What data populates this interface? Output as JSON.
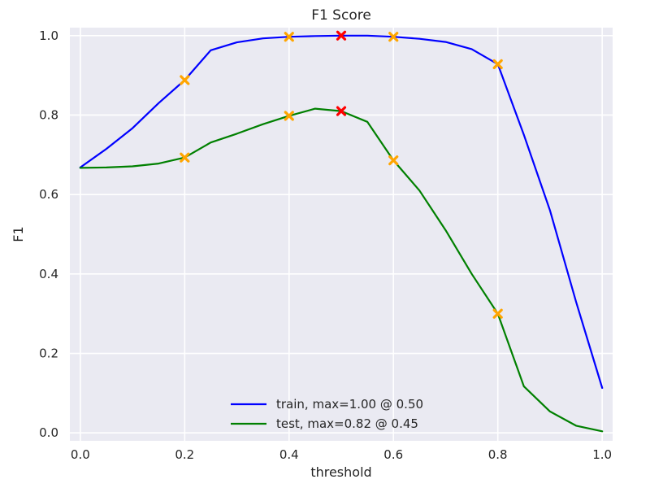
{
  "chart_data": {
    "type": "line",
    "title": "F1 Score",
    "xlabel": "threshold",
    "ylabel": "F1",
    "xlim": [
      -0.02,
      1.02
    ],
    "ylim": [
      -0.02,
      1.02
    ],
    "grid": true,
    "legend_position": "lower-center",
    "x_ticks": [
      "0.0",
      "0.2",
      "0.4",
      "0.6",
      "0.8",
      "1.0"
    ],
    "y_ticks": [
      "0.0",
      "0.2",
      "0.4",
      "0.6",
      "0.8",
      "1.0"
    ],
    "x": [
      0.0,
      0.05,
      0.1,
      0.15,
      0.2,
      0.25,
      0.3,
      0.35,
      0.4,
      0.45,
      0.5,
      0.55,
      0.6,
      0.65,
      0.7,
      0.75,
      0.8,
      0.85,
      0.9,
      0.95,
      1.0
    ],
    "series": [
      {
        "name": "train, max=1.00 @ 0.50",
        "color": "#0000ff",
        "values": [
          0.668,
          0.715,
          0.767,
          0.83,
          0.888,
          0.963,
          0.983,
          0.993,
          0.997,
          0.999,
          1.0,
          1.0,
          0.997,
          0.992,
          0.984,
          0.966,
          0.928,
          0.75,
          0.56,
          0.33,
          0.113
        ]
      },
      {
        "name": "test, max=0.82 @ 0.45",
        "color": "#008000",
        "values": [
          0.667,
          0.668,
          0.671,
          0.678,
          0.693,
          0.731,
          0.753,
          0.777,
          0.798,
          0.816,
          0.81,
          0.783,
          0.686,
          0.61,
          0.51,
          0.4,
          0.3,
          0.117,
          0.054,
          0.018,
          0.004
        ]
      }
    ],
    "markers": [
      {
        "series": 0,
        "x": 0.2,
        "y": 0.888,
        "color": "#ffa500"
      },
      {
        "series": 0,
        "x": 0.4,
        "y": 0.997,
        "color": "#ffa500"
      },
      {
        "series": 0,
        "x": 0.5,
        "y": 1.0,
        "color": "#ff0000"
      },
      {
        "series": 0,
        "x": 0.6,
        "y": 0.997,
        "color": "#ffa500"
      },
      {
        "series": 0,
        "x": 0.8,
        "y": 0.928,
        "color": "#ffa500"
      },
      {
        "series": 1,
        "x": 0.2,
        "y": 0.693,
        "color": "#ffa500"
      },
      {
        "series": 1,
        "x": 0.4,
        "y": 0.798,
        "color": "#ffa500"
      },
      {
        "series": 1,
        "x": 0.5,
        "y": 0.81,
        "color": "#ff0000"
      },
      {
        "series": 1,
        "x": 0.6,
        "y": 0.686,
        "color": "#ffa500"
      },
      {
        "series": 1,
        "x": 0.8,
        "y": 0.3,
        "color": "#ffa500"
      }
    ],
    "colors": {
      "plot_background": "#eaeaf2",
      "grid": "#ffffff"
    }
  }
}
